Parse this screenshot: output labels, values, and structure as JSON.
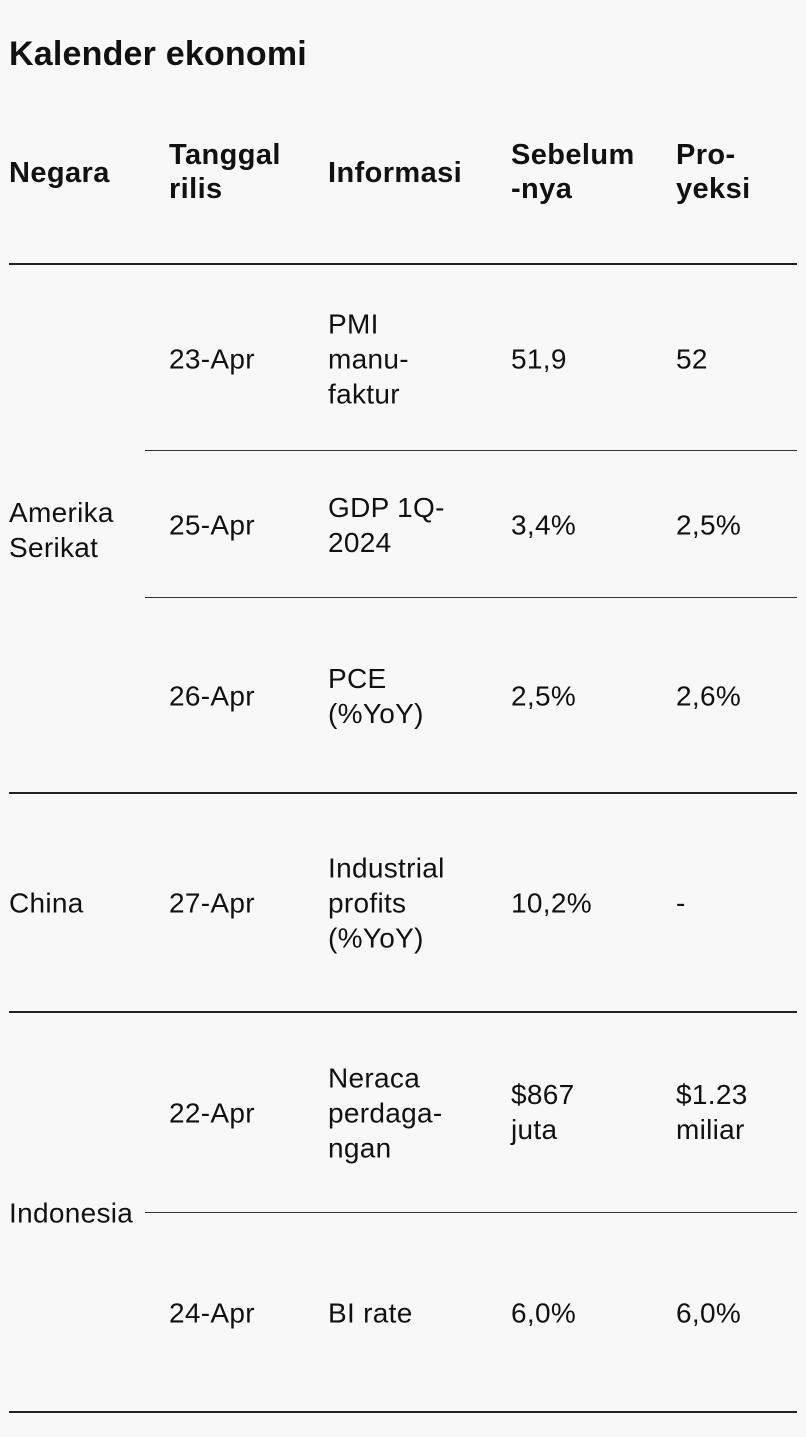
{
  "title": "Kalender ekonomi",
  "columns": {
    "negara": "Negara",
    "tanggal": "Tanggal\nrilis",
    "informasi": "Informasi",
    "sebelumnya": "Sebelum\n-nya",
    "proyeksi": "Pro-\nyeksi"
  },
  "groups": [
    {
      "country": "Amerika\nSerikat",
      "rows": [
        {
          "date": "23-Apr",
          "info": "PMI\nmanu-\nfaktur",
          "previous": "51,9",
          "projection": "52"
        },
        {
          "date": "25-Apr",
          "info": "GDP 1Q-\n2024",
          "previous": "3,4%",
          "projection": "2,5%"
        },
        {
          "date": "26-Apr",
          "info": "PCE\n(%YoY)",
          "previous": "2,5%",
          "projection": "2,6%"
        }
      ]
    },
    {
      "country": "China",
      "rows": [
        {
          "date": "27-Apr",
          "info": "Industrial\nprofits\n(%YoY)",
          "previous": "10,2%",
          "projection": "-"
        }
      ]
    },
    {
      "country": "Indonesia",
      "rows": [
        {
          "date": "22-Apr",
          "info": "Neraca\nperdaga-\nngan",
          "previous": "$867\njuta",
          "projection": "$1.23\nmiliar"
        },
        {
          "date": "24-Apr",
          "info": "BI rate",
          "previous": "6,0%",
          "projection": "6,0%"
        }
      ]
    }
  ]
}
